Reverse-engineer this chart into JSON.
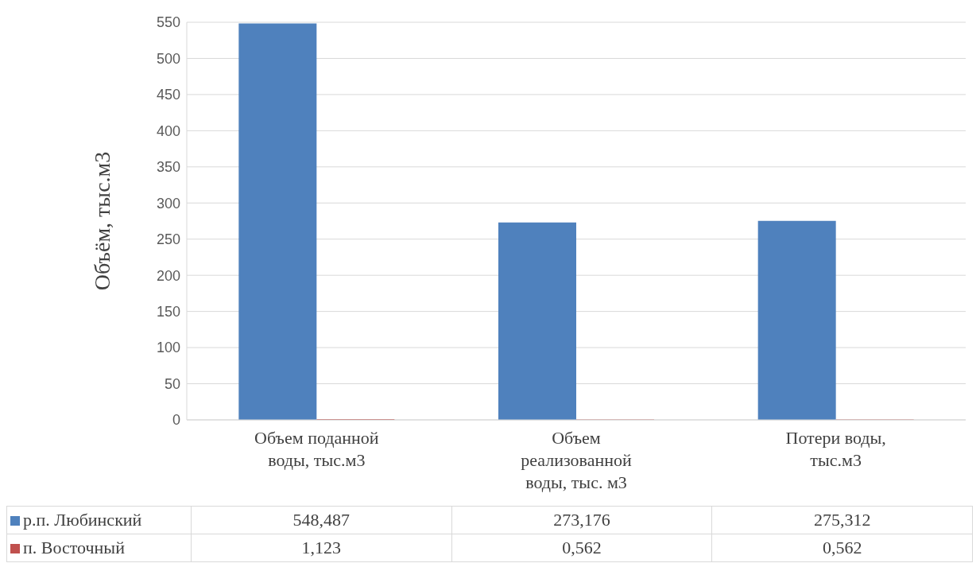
{
  "chart_data": {
    "type": "bar",
    "categories": [
      "Объем поданной воды, тыс.м3",
      "Объем реализованной воды, тыс. м3",
      "Потери воды, тыс.м3"
    ],
    "series": [
      {
        "name": "р.п. Любинский",
        "color": "#4f81bd",
        "values": [
          548.487,
          273.176,
          275.312
        ],
        "value_labels": [
          "548,487",
          "273,176",
          "275,312"
        ]
      },
      {
        "name": "п. Восточный",
        "color": "#c0504d",
        "values": [
          1.123,
          0.562,
          0.562
        ],
        "value_labels": [
          "1,123",
          "0,562",
          "0,562"
        ]
      }
    ],
    "ylabel": "Объём, тыс.м3",
    "ylim": [
      0,
      550
    ],
    "yticks": [
      0,
      50,
      100,
      150,
      200,
      250,
      300,
      350,
      400,
      450,
      500,
      550
    ],
    "grid": "y",
    "legend": "bottom"
  }
}
